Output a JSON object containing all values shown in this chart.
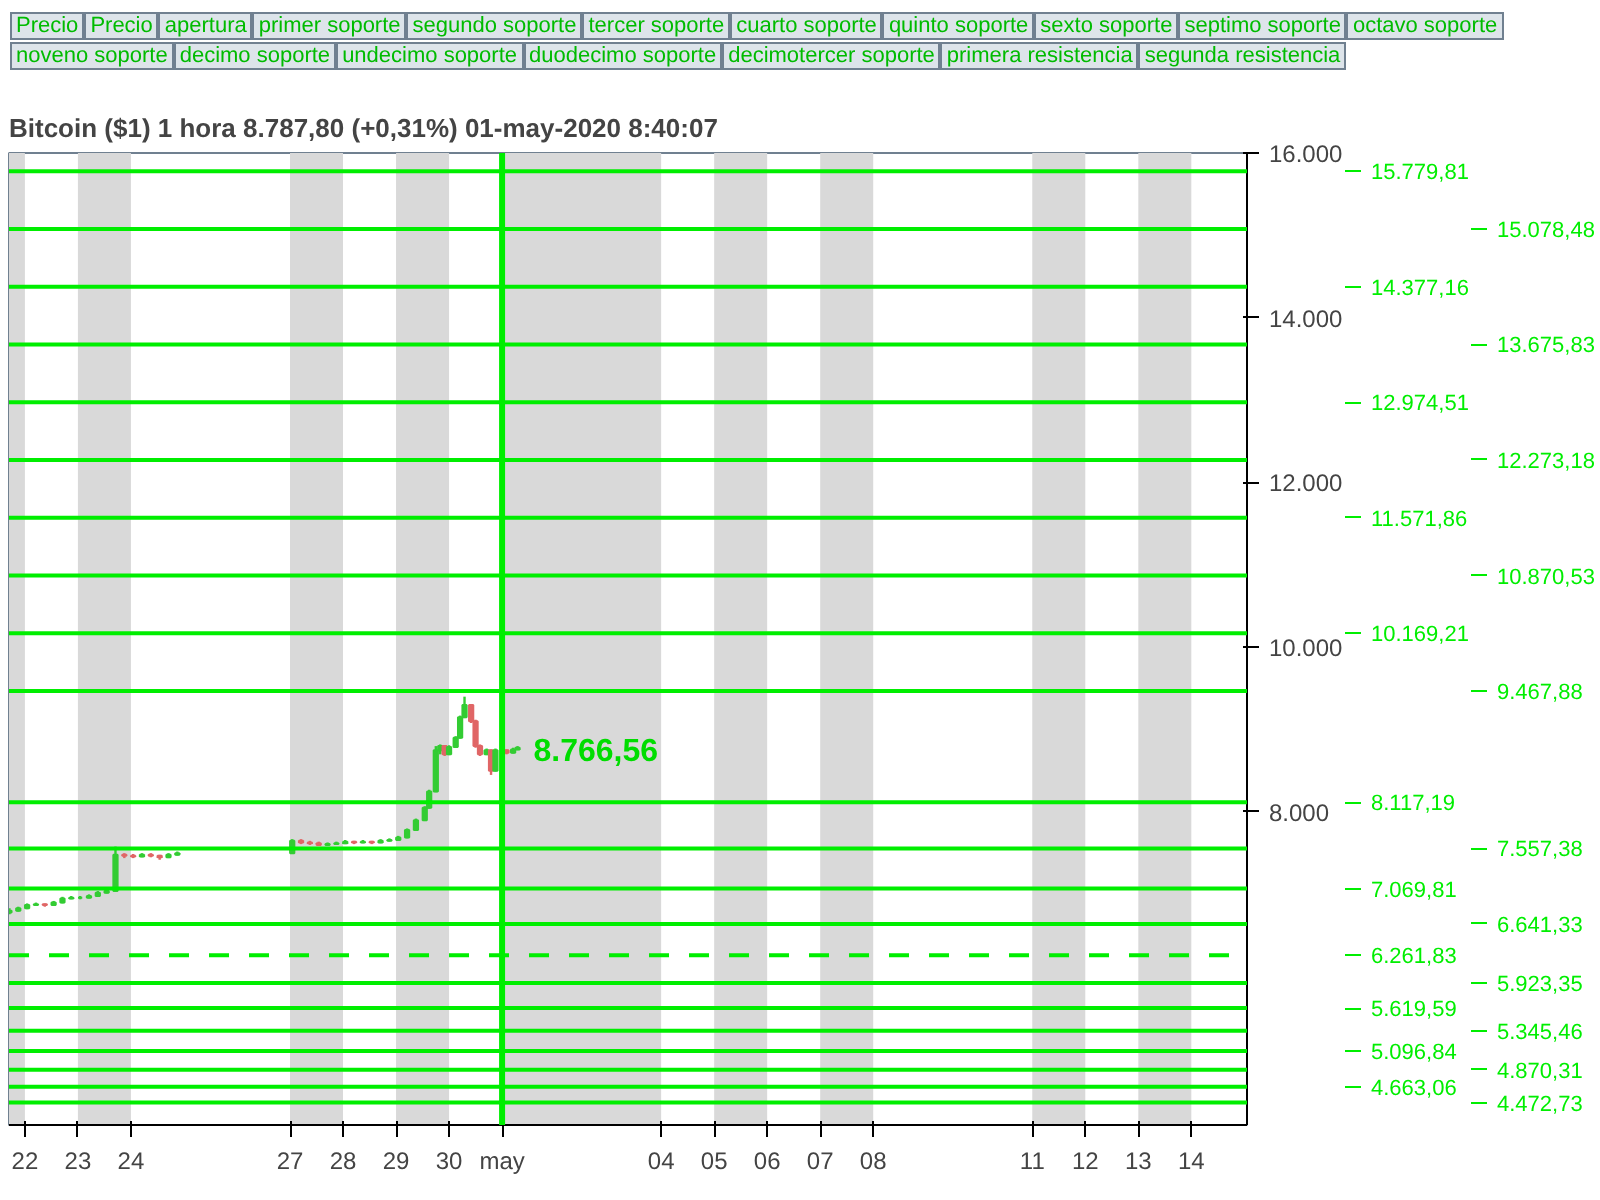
{
  "chart_data": {
    "type": "candlestick",
    "title": "Bitcoin ($1)    1 hora    8.787,80 (+0,31%)    01-may-2020 8:40:07",
    "x": [
      "2020-04-21T17:00",
      "2020-04-21T21:00",
      "2020-04-22T01:00",
      "2020-04-22T05:00",
      "2020-04-22T09:00",
      "2020-04-22T13:00",
      "2020-04-22T17:00",
      "2020-04-22T21:00",
      "2020-04-23T01:00",
      "2020-04-23T05:00",
      "2020-04-23T09:00",
      "2020-04-23T13:00",
      "2020-04-23T17:00",
      "2020-04-23T21:00",
      "2020-04-24T01:00",
      "2020-04-24T05:00",
      "2020-04-24T09:00",
      "2020-04-24T13:00",
      "2020-04-24T17:00",
      "2020-04-24T21:00",
      "2020-04-27T01:00",
      "2020-04-27T05:00",
      "2020-04-27T09:00",
      "2020-04-27T13:00",
      "2020-04-27T17:00",
      "2020-04-27T21:00",
      "2020-04-28T01:00",
      "2020-04-28T05:00",
      "2020-04-28T09:00",
      "2020-04-28T13:00",
      "2020-04-28T17:00",
      "2020-04-28T21:00",
      "2020-04-29T01:00",
      "2020-04-29T05:00",
      "2020-04-29T09:00",
      "2020-04-29T13:00",
      "2020-04-29T15:00",
      "2020-04-29T18:00",
      "2020-04-29T20:00",
      "2020-04-29T22:00",
      "2020-04-30T00:00",
      "2020-04-30T03:00",
      "2020-04-30T05:00",
      "2020-04-30T07:00",
      "2020-04-30T10:00",
      "2020-04-30T12:00",
      "2020-04-30T14:00",
      "2020-04-30T17:00",
      "2020-04-30T19:00",
      "2020-04-30T21:00",
      "2020-05-01T02:00",
      "2020-05-01T05:00",
      "2020-05-01T07:00"
    ],
    "ohlc": [
      [
        6780,
        6830,
        6760,
        6800
      ],
      [
        6800,
        6850,
        6790,
        6830
      ],
      [
        6830,
        6890,
        6820,
        6870
      ],
      [
        6870,
        6900,
        6860,
        6880
      ],
      [
        6880,
        6890,
        6850,
        6870
      ],
      [
        6870,
        6920,
        6860,
        6900
      ],
      [
        6900,
        6970,
        6890,
        6950
      ],
      [
        6950,
        6980,
        6940,
        6960
      ],
      [
        6960,
        6980,
        6940,
        6960
      ],
      [
        6960,
        7000,
        6950,
        6980
      ],
      [
        6980,
        7040,
        6970,
        7020
      ],
      [
        7020,
        7060,
        7010,
        7040
      ],
      [
        7040,
        7580,
        7030,
        7480
      ],
      [
        7480,
        7500,
        7440,
        7470
      ],
      [
        7470,
        7490,
        7440,
        7460
      ],
      [
        7460,
        7500,
        7450,
        7480
      ],
      [
        7480,
        7500,
        7450,
        7470
      ],
      [
        7470,
        7480,
        7420,
        7450
      ],
      [
        7450,
        7500,
        7440,
        7480
      ],
      [
        7480,
        7520,
        7470,
        7500
      ],
      [
        7500,
        7670,
        7490,
        7650
      ],
      [
        7650,
        7670,
        7610,
        7630
      ],
      [
        7630,
        7650,
        7600,
        7620
      ],
      [
        7620,
        7640,
        7590,
        7600
      ],
      [
        7600,
        7630,
        7590,
        7610
      ],
      [
        7610,
        7640,
        7600,
        7620
      ],
      [
        7620,
        7660,
        7610,
        7640
      ],
      [
        7640,
        7650,
        7610,
        7630
      ],
      [
        7630,
        7660,
        7620,
        7640
      ],
      [
        7640,
        7650,
        7610,
        7630
      ],
      [
        7630,
        7670,
        7620,
        7650
      ],
      [
        7650,
        7680,
        7640,
        7660
      ],
      [
        7660,
        7710,
        7650,
        7690
      ],
      [
        7690,
        7800,
        7680,
        7780
      ],
      [
        7780,
        7920,
        7770,
        7900
      ],
      [
        7900,
        8070,
        7890,
        8050
      ],
      [
        8050,
        8270,
        8040,
        8250
      ],
      [
        8250,
        8800,
        8240,
        8750
      ],
      [
        8750,
        8820,
        8700,
        8800
      ],
      [
        8800,
        8810,
        8680,
        8700
      ],
      [
        8700,
        8810,
        8690,
        8790
      ],
      [
        8790,
        8920,
        8780,
        8900
      ],
      [
        8900,
        9170,
        8890,
        9150
      ],
      [
        9150,
        9400,
        9140,
        9300
      ],
      [
        9300,
        9310,
        9080,
        9100
      ],
      [
        9100,
        9120,
        8780,
        8800
      ],
      [
        8800,
        8820,
        8680,
        8700
      ],
      [
        8700,
        8770,
        8690,
        8750
      ],
      [
        8750,
        8760,
        8450,
        8500
      ],
      [
        8500,
        8770,
        8490,
        8750
      ],
      [
        8750,
        8760,
        8700,
        8720
      ],
      [
        8720,
        8780,
        8710,
        8760
      ],
      [
        8760,
        8800,
        8750,
        8780
      ]
    ],
    "colors": [
      "#33cc33",
      "#33cc33",
      "#33cc33",
      "#33cc33",
      "#e06666",
      "#33cc33",
      "#33cc33",
      "#33cc33",
      "#33cc33",
      "#33cc33",
      "#33cc33",
      "#33cc33",
      "#33cc33",
      "#e06666",
      "#e06666",
      "#33cc33",
      "#e06666",
      "#e06666",
      "#33cc33",
      "#33cc33",
      "#33cc33",
      "#e06666",
      "#e06666",
      "#e06666",
      "#33cc33",
      "#33cc33",
      "#33cc33",
      "#e06666",
      "#33cc33",
      "#e06666",
      "#33cc33",
      "#33cc33",
      "#33cc33",
      "#33cc33",
      "#33cc33",
      "#33cc33",
      "#33cc33",
      "#33cc33",
      "#33cc33",
      "#e06666",
      "#33cc33",
      "#33cc33",
      "#33cc33",
      "#33cc33",
      "#e06666",
      "#e06666",
      "#e06666",
      "#33cc33",
      "#e06666",
      "#33cc33",
      "#e06666",
      "#33cc33",
      "#33cc33"
    ],
    "xlim": [
      "2020-04-21T16:48",
      "2020-05-15T01:12"
    ],
    "xticks": [
      {
        "value": "2020-04-22",
        "label": "22"
      },
      {
        "value": "2020-04-23",
        "label": "23"
      },
      {
        "value": "2020-04-24",
        "label": "24"
      },
      {
        "value": "2020-04-27",
        "label": "27"
      },
      {
        "value": "2020-04-28",
        "label": "28"
      },
      {
        "value": "2020-04-29",
        "label": "29"
      },
      {
        "value": "2020-04-30",
        "label": "30"
      },
      {
        "value": "2020-05-01",
        "label": "may"
      },
      {
        "value": "2020-05-04",
        "label": "04"
      },
      {
        "value": "2020-05-05",
        "label": "05"
      },
      {
        "value": "2020-05-06",
        "label": "06"
      },
      {
        "value": "2020-05-07",
        "label": "07"
      },
      {
        "value": "2020-05-08",
        "label": "08"
      },
      {
        "value": "2020-05-11",
        "label": "11"
      },
      {
        "value": "2020-05-12",
        "label": "12"
      },
      {
        "value": "2020-05-13",
        "label": "13"
      },
      {
        "value": "2020-05-14",
        "label": "14"
      }
    ],
    "ylim": [
      4200,
      16000
    ],
    "yticks": [
      {
        "value": 8000,
        "label": "8.000"
      },
      {
        "value": 10000,
        "label": "10.000"
      },
      {
        "value": 12000,
        "label": "12.000"
      },
      {
        "value": 14000,
        "label": "14.000"
      },
      {
        "value": 16000,
        "label": "16.000"
      }
    ],
    "ref_lines": [
      {
        "axis": "y",
        "value": 15779.81,
        "label": "15.779,81",
        "color": "#00ee00"
      },
      {
        "axis": "y",
        "value": 15078.48,
        "label": "15.078,48",
        "color": "#00ee00"
      },
      {
        "axis": "y",
        "value": 14377.16,
        "label": "14.377,16",
        "color": "#00ee00"
      },
      {
        "axis": "y",
        "value": 13675.83,
        "label": "13.675,83",
        "color": "#00ee00"
      },
      {
        "axis": "y",
        "value": 12974.51,
        "label": "12.974,51",
        "color": "#00ee00"
      },
      {
        "axis": "y",
        "value": 12273.18,
        "label": "12.273,18",
        "color": "#00ee00"
      },
      {
        "axis": "y",
        "value": 11571.86,
        "label": "11.571,86",
        "color": "#00ee00"
      },
      {
        "axis": "y",
        "value": 10870.53,
        "label": "10.870,53",
        "color": "#00ee00"
      },
      {
        "axis": "y",
        "value": 10169.21,
        "label": "10.169,21",
        "color": "#00ee00"
      },
      {
        "axis": "y",
        "value": 9467.88,
        "label": "9.467,88",
        "color": "#00ee00"
      },
      {
        "axis": "y",
        "value": 8117.19,
        "label": "8.117,19",
        "color": "#00ee00"
      },
      {
        "axis": "y",
        "value": 7557.38,
        "label": "7.557,38",
        "color": "#00ee00"
      },
      {
        "axis": "y",
        "value": 7069.81,
        "label": "7.069,81",
        "color": "#00ee00"
      },
      {
        "axis": "y",
        "value": 6641.33,
        "label": "6.641,33",
        "color": "#00ee00"
      },
      {
        "axis": "y",
        "value": 6261.83,
        "label": "6.261,83",
        "color": "#00ee00",
        "line_style": "dashed"
      },
      {
        "axis": "y",
        "value": 5923.35,
        "label": "5.923,35",
        "color": "#00ee00"
      },
      {
        "axis": "y",
        "value": 5619.59,
        "label": "5.619,59",
        "color": "#00ee00"
      },
      {
        "axis": "y",
        "value": 5345.46,
        "label": "5.345,46",
        "color": "#00ee00"
      },
      {
        "axis": "y",
        "value": 5096.84,
        "label": "5.096,84",
        "color": "#00ee00"
      },
      {
        "axis": "y",
        "value": 4870.31,
        "label": "4.870,31",
        "color": "#00ee00"
      },
      {
        "axis": "y",
        "value": 4663.06,
        "label": "4.663,06",
        "color": "#00ee00"
      },
      {
        "axis": "y",
        "value": 4472.73,
        "label": "4.472,73",
        "color": "#00ee00"
      },
      {
        "axis": "x",
        "value": "2020-05-01",
        "color": "#00ee00"
      }
    ],
    "bands": [
      {
        "axis": "x",
        "from": "2020-04-21T16:48",
        "to": "2020-04-22",
        "color": "#d9d9d9"
      },
      {
        "axis": "x",
        "from": "2020-04-23",
        "to": "2020-04-24",
        "color": "#d9d9d9"
      },
      {
        "axis": "x",
        "from": "2020-04-27",
        "to": "2020-04-28",
        "color": "#d9d9d9"
      },
      {
        "axis": "x",
        "from": "2020-04-29",
        "to": "2020-04-30",
        "color": "#d9d9d9"
      },
      {
        "axis": "x",
        "from": "2020-05-01",
        "to": "2020-05-04",
        "color": "#d9d9d9"
      },
      {
        "axis": "x",
        "from": "2020-05-05",
        "to": "2020-05-06",
        "color": "#d9d9d9"
      },
      {
        "axis": "x",
        "from": "2020-05-07",
        "to": "2020-05-08",
        "color": "#d9d9d9"
      },
      {
        "axis": "x",
        "from": "2020-05-11",
        "to": "2020-05-12",
        "color": "#d9d9d9"
      },
      {
        "axis": "x",
        "from": "2020-05-13",
        "to": "2020-05-14",
        "color": "#d9d9d9"
      }
    ],
    "annotations": [
      "Precio",
      "Precio",
      "apertura",
      "primer soporte",
      "segundo soporte",
      "tercer soporte",
      "cuarto soporte",
      "quinto soporte",
      "sexto soporte",
      "septimo soporte",
      "octavo soporte",
      "noveno soporte",
      "decimo soporte",
      "undecimo soporte",
      "duodecimo soporte",
      "decimotercer soporte",
      "primera resistencia",
      "segunda resistencia",
      {
        "text": "8.766,56",
        "x": "2020-05-01T07:00",
        "y": 8766.56
      }
    ],
    "grid": false
  }
}
